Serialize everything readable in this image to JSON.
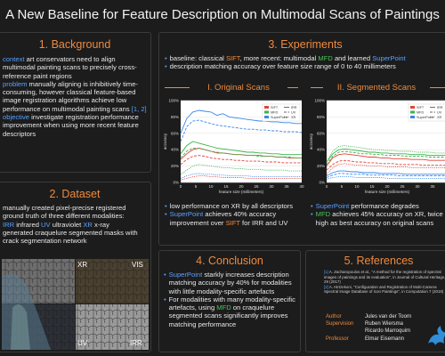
{
  "title": "A New Baseline for Feature Description on Multimodal Scans of Paintings",
  "background": {
    "heading": "1. Background",
    "context_kw": "context",
    "context_text": " art conservators need to align multimodal painting scans to precisely cross-reference paint regions",
    "problem_kw": "problem",
    "problem_text": " manually aligning is inhibitively time-consuming, however classical feature-based image registration algorithms achieve low performance on multimodal painting scans ",
    "problem_refs": "[1, 2]",
    "objective_kw": "objective",
    "objective_text": " investigate registration performance improvement when using more recent feature descriptors"
  },
  "dataset": {
    "heading": "2. Dataset",
    "intro": "manually created pixel-precise registered ground truth of three different modalities:",
    "irr_kw": "IRR",
    "irr_text": " infrared ",
    "uv_kw": "UV",
    "uv_text": " ultraviolet ",
    "xr_kw": "XR",
    "xr_text": " x-ray",
    "rest": "generated craquelure segmented masks with crack segmentation network",
    "labels": {
      "xr": "XR",
      "vis": "VIS",
      "uv": "UV",
      "irr": "IRR"
    }
  },
  "experiments": {
    "heading": "3. Experiments",
    "b1_pre": "baseline: classical ",
    "b1_sift": "SIFT",
    "b1_mid": ", more recent: multimodal ",
    "b1_mfd": "MFD",
    "b1_and": " and learned ",
    "b1_sp": "SuperPoint",
    "b2": "description matching accuracy over feature size range of 0 to 40 millimeters",
    "sub1": "I. Original Scans",
    "sub2": "II. Segmented Scans",
    "left_b1": "low performance on XR by all descriptors",
    "left_b2_kw": "SuperPoint",
    "left_b2_mid": " achieves 40% accuracy improvement over ",
    "left_b2_sift": "SIFT",
    "left_b2_end": " for IRR and UV",
    "right_b1_kw": "SuperPoint",
    "right_b1_text": " performance degrades",
    "right_b2_kw": "MFD",
    "right_b2_text": " achieves 45% accuracy on XR, twice as high as best accuracy on original scans"
  },
  "conclusion": {
    "heading": "4. Conclusion",
    "c1_kw": "SuperPoint",
    "c1_text": " starkly increases description matching accuracy by 40% for modalities with little modality-specific artefacts",
    "c2_pre": "For modalities with many modality-specific artefacts, using ",
    "c2_kw": "MFD",
    "c2_text": " on craquelure segmented scans significantly improves matching performance"
  },
  "references": {
    "heading": "5. References",
    "r1_num": "[1]",
    "r1": " A. Zacharopoulos et al., \"A method for the registration of spectral images of paintings and its evaluation\", in Journal of Cultural Heritage, 29 (2017)",
    "r2_num": "[2]",
    "r2": " A. Hirtzekoni, \"Configuration and Registration of Multi-Camera Spectral Image Database of Icon Paintings\", in Computation 7 (2019)",
    "author_label": "Author",
    "supervision_label": "Supervision",
    "professor_label": "Professor",
    "author": "Jules van der Toorn",
    "sup1": "Ruben Wiersma",
    "sup2": "Ricardo Marroquim",
    "professor": "Elmar Eisemann"
  },
  "chart_data": [
    {
      "type": "line",
      "title": "I. Original Scans",
      "xlabel": "feature size (millimeters)",
      "ylabel": "accuracy",
      "xlim": [
        0,
        40
      ],
      "ylim": [
        0,
        1
      ],
      "xticks": [
        "0",
        "5",
        "10",
        "15",
        "20",
        "25",
        "30",
        "35",
        "40"
      ],
      "yticks": [
        "0%",
        "20%",
        "40%",
        "60%",
        "80%",
        "100%"
      ],
      "legend": [
        "SIFT",
        "MFD",
        "SuperPoint",
        "IRR",
        "UV",
        "XR"
      ],
      "series": [
        {
          "name": "SIFT",
          "modality": "IRR",
          "x": [
            0,
            2,
            4,
            6,
            8,
            10,
            12,
            14,
            16,
            18,
            20,
            22,
            24,
            26,
            28,
            30,
            32,
            34,
            36,
            38,
            40
          ],
          "values": [
            0.28,
            0.35,
            0.4,
            0.42,
            0.4,
            0.38,
            0.36,
            0.36,
            0.35,
            0.34,
            0.34,
            0.33,
            0.33,
            0.33,
            0.32,
            0.32,
            0.31,
            0.31,
            0.3,
            0.3,
            0.3
          ]
        },
        {
          "name": "SIFT",
          "modality": "UV",
          "x": [
            0,
            2,
            4,
            6,
            8,
            10,
            12,
            14,
            16,
            18,
            20,
            22,
            24,
            26,
            28,
            30,
            32,
            34,
            36,
            38,
            40
          ],
          "values": [
            0.22,
            0.28,
            0.32,
            0.33,
            0.32,
            0.3,
            0.29,
            0.28,
            0.28,
            0.27,
            0.27,
            0.26,
            0.26,
            0.26,
            0.25,
            0.25,
            0.25,
            0.24,
            0.24,
            0.24,
            0.24
          ]
        },
        {
          "name": "SIFT",
          "modality": "XR",
          "x": [
            0,
            2,
            4,
            6,
            8,
            10,
            12,
            14,
            16,
            18,
            20,
            22,
            24,
            26,
            28,
            30,
            32,
            34,
            36,
            38,
            40
          ],
          "values": [
            0.03,
            0.05,
            0.07,
            0.08,
            0.08,
            0.07,
            0.07,
            0.06,
            0.06,
            0.06,
            0.06,
            0.05,
            0.05,
            0.05,
            0.05,
            0.05,
            0.05,
            0.05,
            0.05,
            0.05,
            0.05
          ]
        },
        {
          "name": "MFD",
          "modality": "IRR",
          "x": [
            0,
            2,
            4,
            6,
            8,
            10,
            12,
            14,
            16,
            18,
            20,
            22,
            24,
            26,
            28,
            30,
            32,
            34,
            36,
            38,
            40
          ],
          "values": [
            0.35,
            0.45,
            0.5,
            0.48,
            0.46,
            0.44,
            0.42,
            0.41,
            0.4,
            0.39,
            0.38,
            0.37,
            0.37,
            0.36,
            0.36,
            0.35,
            0.35,
            0.34,
            0.34,
            0.34,
            0.34
          ]
        },
        {
          "name": "MFD",
          "modality": "UV",
          "x": [
            0,
            2,
            4,
            6,
            8,
            10,
            12,
            14,
            16,
            18,
            20,
            22,
            24,
            26,
            28,
            30,
            32,
            34,
            36,
            38,
            40
          ],
          "values": [
            0.3,
            0.38,
            0.42,
            0.42,
            0.4,
            0.38,
            0.37,
            0.36,
            0.35,
            0.34,
            0.34,
            0.33,
            0.33,
            0.32,
            0.32,
            0.32,
            0.31,
            0.31,
            0.31,
            0.3,
            0.3
          ]
        },
        {
          "name": "MFD",
          "modality": "XR",
          "x": [
            0,
            2,
            4,
            6,
            8,
            10,
            12,
            14,
            16,
            18,
            20,
            22,
            24,
            26,
            28,
            30,
            32,
            34,
            36,
            38,
            40
          ],
          "values": [
            0.1,
            0.15,
            0.2,
            0.22,
            0.21,
            0.2,
            0.19,
            0.18,
            0.18,
            0.17,
            0.17,
            0.16,
            0.16,
            0.16,
            0.15,
            0.15,
            0.15,
            0.15,
            0.14,
            0.14,
            0.14
          ]
        },
        {
          "name": "SuperPoint",
          "modality": "IRR",
          "x": [
            0,
            2,
            4,
            6,
            8,
            10,
            12,
            14,
            16,
            18,
            20,
            22,
            24,
            26,
            28,
            30,
            32,
            34,
            36,
            38,
            40
          ],
          "values": [
            0.6,
            0.78,
            0.86,
            0.88,
            0.87,
            0.86,
            0.82,
            0.84,
            0.8,
            0.79,
            0.78,
            0.77,
            0.76,
            0.75,
            0.75,
            0.74,
            0.74,
            0.73,
            0.73,
            0.72,
            0.72
          ]
        },
        {
          "name": "SuperPoint",
          "modality": "UV",
          "x": [
            0,
            2,
            4,
            6,
            8,
            10,
            12,
            14,
            16,
            18,
            20,
            22,
            24,
            26,
            28,
            30,
            32,
            34,
            36,
            38,
            40
          ],
          "values": [
            0.5,
            0.68,
            0.75,
            0.76,
            0.74,
            0.72,
            0.7,
            0.69,
            0.68,
            0.67,
            0.66,
            0.65,
            0.65,
            0.64,
            0.64,
            0.63,
            0.63,
            0.62,
            0.62,
            0.62,
            0.61
          ]
        },
        {
          "name": "SuperPoint",
          "modality": "XR",
          "x": [
            0,
            2,
            4,
            6,
            8,
            10,
            12,
            14,
            16,
            18,
            20,
            22,
            24,
            26,
            28,
            30,
            32,
            34,
            36,
            38,
            40
          ],
          "values": [
            0.05,
            0.08,
            0.1,
            0.11,
            0.1,
            0.1,
            0.09,
            0.09,
            0.08,
            0.08,
            0.08,
            0.08,
            0.07,
            0.07,
            0.07,
            0.07,
            0.07,
            0.07,
            0.07,
            0.07,
            0.07
          ]
        }
      ]
    },
    {
      "type": "line",
      "title": "II. Segmented Scans",
      "xlabel": "feature size (millimeters)",
      "ylabel": "accuracy",
      "xlim": [
        0,
        40
      ],
      "ylim": [
        0,
        1
      ],
      "xticks": [
        "0",
        "5",
        "10",
        "15",
        "20",
        "25",
        "30",
        "35",
        "40"
      ],
      "yticks": [
        "0%",
        "20%",
        "40%",
        "60%",
        "80%",
        "100%"
      ],
      "legend": [
        "SIFT",
        "MFD",
        "SuperPoint",
        "IRR",
        "UV",
        "XR"
      ],
      "series": [
        {
          "name": "SIFT",
          "modality": "IRR",
          "x": [
            0,
            2,
            4,
            6,
            8,
            10,
            12,
            14,
            16,
            18,
            20,
            22,
            24,
            26,
            28,
            30,
            32,
            34,
            36,
            38,
            40
          ],
          "values": [
            0.2,
            0.3,
            0.34,
            0.35,
            0.34,
            0.33,
            0.32,
            0.31,
            0.31,
            0.3,
            0.3,
            0.29,
            0.29,
            0.29,
            0.28,
            0.28,
            0.28,
            0.27,
            0.27,
            0.27,
            0.27
          ]
        },
        {
          "name": "SIFT",
          "modality": "UV",
          "x": [
            0,
            2,
            4,
            6,
            8,
            10,
            12,
            14,
            16,
            18,
            20,
            22,
            24,
            26,
            28,
            30,
            32,
            34,
            36,
            38,
            40
          ],
          "values": [
            0.15,
            0.22,
            0.26,
            0.27,
            0.26,
            0.25,
            0.25,
            0.24,
            0.24,
            0.23,
            0.23,
            0.23,
            0.22,
            0.22,
            0.22,
            0.22,
            0.21,
            0.21,
            0.21,
            0.21,
            0.21
          ]
        },
        {
          "name": "SIFT",
          "modality": "XR",
          "x": [
            0,
            2,
            4,
            6,
            8,
            10,
            12,
            14,
            16,
            18,
            20,
            22,
            24,
            26,
            28,
            30,
            32,
            34,
            36,
            38,
            40
          ],
          "values": [
            0.1,
            0.18,
            0.22,
            0.23,
            0.22,
            0.21,
            0.21,
            0.2,
            0.2,
            0.2,
            0.19,
            0.19,
            0.19,
            0.19,
            0.18,
            0.18,
            0.18,
            0.18,
            0.18,
            0.18,
            0.18
          ]
        },
        {
          "name": "MFD",
          "modality": "IRR",
          "x": [
            0,
            2,
            4,
            6,
            8,
            10,
            12,
            14,
            16,
            18,
            20,
            22,
            24,
            26,
            28,
            30,
            32,
            34,
            36,
            38,
            40
          ],
          "values": [
            0.25,
            0.35,
            0.4,
            0.41,
            0.4,
            0.39,
            0.38,
            0.37,
            0.37,
            0.36,
            0.36,
            0.35,
            0.35,
            0.35,
            0.34,
            0.34,
            0.34,
            0.33,
            0.33,
            0.33,
            0.33
          ]
        },
        {
          "name": "MFD",
          "modality": "UV",
          "x": [
            0,
            2,
            4,
            6,
            8,
            10,
            12,
            14,
            16,
            18,
            20,
            22,
            24,
            26,
            28,
            30,
            32,
            34,
            36,
            38,
            40
          ],
          "values": [
            0.22,
            0.32,
            0.37,
            0.38,
            0.37,
            0.36,
            0.35,
            0.35,
            0.34,
            0.34,
            0.33,
            0.33,
            0.33,
            0.32,
            0.32,
            0.32,
            0.32,
            0.31,
            0.31,
            0.31,
            0.31
          ]
        },
        {
          "name": "MFD",
          "modality": "XR",
          "x": [
            0,
            2,
            4,
            6,
            8,
            10,
            12,
            14,
            16,
            18,
            20,
            22,
            24,
            26,
            28,
            30,
            32,
            34,
            36,
            38,
            40
          ],
          "values": [
            0.25,
            0.38,
            0.44,
            0.45,
            0.44,
            0.43,
            0.42,
            0.41,
            0.4,
            0.4,
            0.39,
            0.39,
            0.38,
            0.38,
            0.38,
            0.37,
            0.37,
            0.37,
            0.36,
            0.36,
            0.36
          ]
        },
        {
          "name": "SuperPoint",
          "modality": "IRR",
          "x": [
            0,
            2,
            4,
            6,
            8,
            10,
            12,
            14,
            16,
            18,
            20,
            22,
            24,
            26,
            28,
            30,
            32,
            34,
            36,
            38,
            40
          ],
          "values": [
            0.08,
            0.12,
            0.14,
            0.14,
            0.13,
            0.13,
            0.12,
            0.12,
            0.12,
            0.11,
            0.11,
            0.11,
            0.11,
            0.1,
            0.1,
            0.1,
            0.1,
            0.1,
            0.1,
            0.1,
            0.1
          ]
        },
        {
          "name": "SuperPoint",
          "modality": "UV",
          "x": [
            0,
            2,
            4,
            6,
            8,
            10,
            12,
            14,
            16,
            18,
            20,
            22,
            24,
            26,
            28,
            30,
            32,
            34,
            36,
            38,
            40
          ],
          "values": [
            0.06,
            0.09,
            0.11,
            0.11,
            0.1,
            0.1,
            0.1,
            0.09,
            0.09,
            0.09,
            0.09,
            0.09,
            0.08,
            0.08,
            0.08,
            0.08,
            0.08,
            0.08,
            0.08,
            0.08,
            0.08
          ]
        },
        {
          "name": "SuperPoint",
          "modality": "XR",
          "x": [
            0,
            2,
            4,
            6,
            8,
            10,
            12,
            14,
            16,
            18,
            20,
            22,
            24,
            26,
            28,
            30,
            32,
            34,
            36,
            38,
            40
          ],
          "values": [
            0.04,
            0.06,
            0.07,
            0.07,
            0.07,
            0.06,
            0.06,
            0.06,
            0.06,
            0.06,
            0.05,
            0.05,
            0.05,
            0.05,
            0.05,
            0.05,
            0.05,
            0.05,
            0.05,
            0.05,
            0.05
          ]
        }
      ]
    }
  ]
}
